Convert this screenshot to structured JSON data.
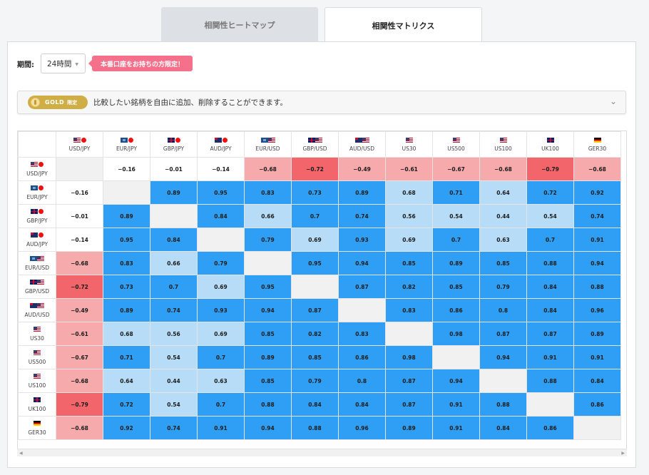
{
  "tabs": [
    {
      "label": "相関性ヒートマップ"
    },
    {
      "label": "相関性マトリクス"
    }
  ],
  "period": {
    "label": "期間:",
    "value": "24時間"
  },
  "promo": "本番口座をお持ちの方限定！",
  "gold": {
    "badge": "GOLD",
    "badge_sub": "限定",
    "text": "比較したい銘柄を自由に追加、削除することができます。"
  },
  "symbols": [
    "USD/JPY",
    "EUR/JPY",
    "GBP/JPY",
    "AUD/JPY",
    "EUR/USD",
    "GBP/USD",
    "AUD/USD",
    "US30",
    "US500",
    "US100",
    "UK100",
    "GER30"
  ],
  "flags": [
    [
      "us",
      "jp"
    ],
    [
      "eu",
      "jp"
    ],
    [
      "gb",
      "jp"
    ],
    [
      "au",
      "jp"
    ],
    [
      "eu",
      "us"
    ],
    [
      "gb",
      "us"
    ],
    [
      "au",
      "us"
    ],
    [
      "us"
    ],
    [
      "us"
    ],
    [
      "us"
    ],
    [
      "gb"
    ],
    [
      "de"
    ]
  ],
  "matrix": [
    [
      null,
      "-0.16",
      "-0.01",
      "-0.14",
      "-0.68",
      "-0.72",
      "-0.49",
      "-0.61",
      "-0.67",
      "-0.68",
      "-0.79",
      "-0.68"
    ],
    [
      "-0.16",
      null,
      "0.89",
      "0.95",
      "0.83",
      "0.73",
      "0.89",
      "0.68",
      "0.71",
      "0.64",
      "0.72",
      "0.92"
    ],
    [
      "-0.01",
      "0.89",
      null,
      "0.84",
      "0.66",
      "0.7",
      "0.74",
      "0.56",
      "0.54",
      "0.44",
      "0.54",
      "0.74"
    ],
    [
      "-0.14",
      "0.95",
      "0.84",
      null,
      "0.79",
      "0.69",
      "0.93",
      "0.69",
      "0.7",
      "0.63",
      "0.7",
      "0.91"
    ],
    [
      "-0.68",
      "0.83",
      "0.66",
      "0.79",
      null,
      "0.95",
      "0.94",
      "0.85",
      "0.89",
      "0.85",
      "0.88",
      "0.94"
    ],
    [
      "-0.72",
      "0.73",
      "0.7",
      "0.69",
      "0.95",
      null,
      "0.87",
      "0.82",
      "0.85",
      "0.79",
      "0.84",
      "0.88"
    ],
    [
      "-0.49",
      "0.89",
      "0.74",
      "0.93",
      "0.94",
      "0.87",
      null,
      "0.83",
      "0.86",
      "0.8",
      "0.84",
      "0.96"
    ],
    [
      "-0.61",
      "0.68",
      "0.56",
      "0.69",
      "0.85",
      "0.82",
      "0.83",
      null,
      "0.98",
      "0.87",
      "0.87",
      "0.89"
    ],
    [
      "-0.67",
      "0.71",
      "0.54",
      "0.7",
      "0.89",
      "0.85",
      "0.86",
      "0.98",
      null,
      "0.94",
      "0.91",
      "0.91"
    ],
    [
      "-0.68",
      "0.64",
      "0.44",
      "0.63",
      "0.85",
      "0.79",
      "0.8",
      "0.87",
      "0.94",
      null,
      "0.88",
      "0.84"
    ],
    [
      "-0.79",
      "0.72",
      "0.54",
      "0.7",
      "0.88",
      "0.84",
      "0.84",
      "0.87",
      "0.91",
      "0.88",
      null,
      "0.86"
    ],
    [
      "-0.68",
      "0.92",
      "0.74",
      "0.91",
      "0.94",
      "0.88",
      "0.96",
      "0.89",
      "0.91",
      "0.84",
      "0.86",
      null
    ]
  ],
  "colors": {
    "strong_pos": "#2e9ff5",
    "weak_pos": "#b6dcf7",
    "strong_neg": "#f2656a",
    "mid_neg": "#f7aaab",
    "neutral": "#ffffff",
    "diagonal": "#f1f1f1"
  }
}
